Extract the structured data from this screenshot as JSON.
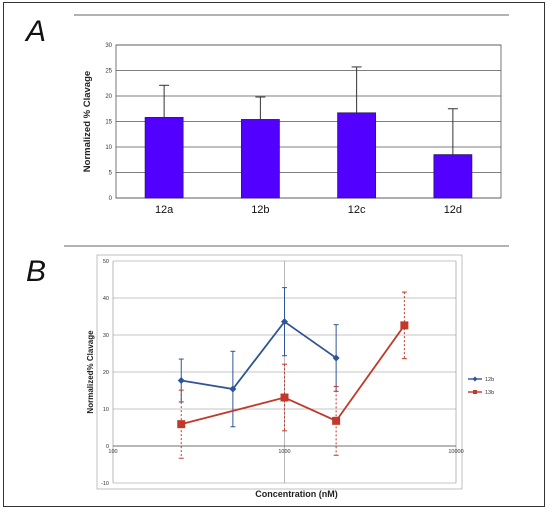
{
  "panels": [
    {
      "label": "A"
    },
    {
      "label": "B"
    }
  ],
  "chart_data": [
    {
      "type": "bar",
      "categories": [
        "12a",
        "12b",
        "12c",
        "12d"
      ],
      "values": [
        15.8,
        15.4,
        16.7,
        8.5
      ],
      "error_plus": [
        6.3,
        4.4,
        9.0,
        9.0
      ],
      "title": "",
      "xlabel": "",
      "ylabel": "Normalized % Clavage",
      "ylim": [
        0,
        30
      ],
      "yticks": [
        "0",
        "5",
        "10",
        "15",
        "20",
        "25",
        "30"
      ],
      "grid": true,
      "colors": {
        "bar": "#5200ff",
        "bar_edge": "#2a1a66",
        "error": "#333333",
        "grid": "#555555"
      }
    },
    {
      "type": "line",
      "xscale": "log",
      "xlabel": "Concentration (nM)",
      "ylabel": "Normalized% Clavage",
      "xlim": [
        100,
        10000
      ],
      "ylim": [
        -10,
        50
      ],
      "xticks": [
        "100",
        "1000",
        "10000"
      ],
      "yticks": [
        "-10",
        "0",
        "10",
        "20",
        "30",
        "40",
        "50"
      ],
      "grid": true,
      "legend_position": "right",
      "series": [
        {
          "name": "12b",
          "color": "#2f5597",
          "marker": "diamond",
          "dashed_error": false,
          "x": [
            250,
            500,
            1000,
            2000
          ],
          "y": [
            17.7,
            15.4,
            33.6,
            23.8
          ],
          "error": [
            5.8,
            10.2,
            9.2,
            9.0
          ]
        },
        {
          "name": "13b",
          "color": "#c0392b",
          "marker": "square",
          "dashed_error": true,
          "x": [
            250,
            1000,
            2000,
            5000
          ],
          "y": [
            5.9,
            13.1,
            6.8,
            32.6
          ],
          "error": [
            9.2,
            9.0,
            9.3,
            9.0
          ]
        }
      ]
    }
  ]
}
